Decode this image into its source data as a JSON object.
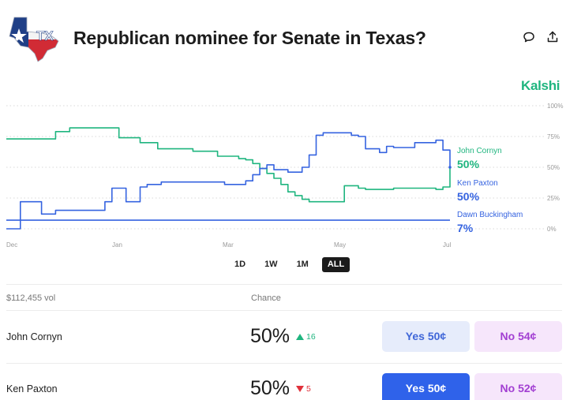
{
  "header": {
    "title": "Republican nominee for Senate in Texas?",
    "logo_text": "TX"
  },
  "brand": "Kalshi",
  "chart_data": {
    "type": "line",
    "x_tick_labels": [
      "Dec",
      "Jan",
      "Mar",
      "May",
      "Jul"
    ],
    "y_tick_labels": [
      "100%",
      "75%",
      "50%",
      "25%",
      "0%"
    ],
    "ylim": [
      0,
      100
    ],
    "grid": true,
    "series": [
      {
        "name": "John Cornyn",
        "label_value": "50%",
        "color": "#1fb57f",
        "values": [
          [
            0,
            73
          ],
          [
            4,
            73
          ],
          [
            8,
            73
          ],
          [
            12,
            73
          ],
          [
            14,
            79
          ],
          [
            18,
            82
          ],
          [
            22,
            82
          ],
          [
            26,
            82
          ],
          [
            30,
            82
          ],
          [
            32,
            74
          ],
          [
            36,
            74
          ],
          [
            38,
            70
          ],
          [
            40,
            70
          ],
          [
            43,
            65
          ],
          [
            46,
            65
          ],
          [
            50,
            65
          ],
          [
            53,
            63
          ],
          [
            56,
            63
          ],
          [
            60,
            59
          ],
          [
            63,
            59
          ],
          [
            66,
            57
          ],
          [
            68,
            56
          ],
          [
            70,
            53
          ],
          [
            72,
            49
          ],
          [
            74,
            45
          ],
          [
            76,
            41
          ],
          [
            78,
            36
          ],
          [
            80,
            30
          ],
          [
            82,
            27
          ],
          [
            84,
            24
          ],
          [
            86,
            22
          ],
          [
            88,
            22
          ],
          [
            90,
            22
          ],
          [
            92,
            22
          ],
          [
            94,
            22
          ],
          [
            96,
            35
          ],
          [
            98,
            35
          ],
          [
            100,
            33
          ],
          [
            102,
            32
          ],
          [
            104,
            32
          ],
          [
            106,
            32
          ],
          [
            108,
            32
          ],
          [
            110,
            33
          ],
          [
            112,
            33
          ],
          [
            114,
            33
          ],
          [
            116,
            33
          ],
          [
            118,
            33
          ],
          [
            120,
            33
          ],
          [
            122,
            32
          ],
          [
            124,
            34
          ],
          [
            126,
            50
          ]
        ]
      },
      {
        "name": "Ken Paxton",
        "label_value": "50%",
        "color": "#3563e0",
        "values": [
          [
            0,
            0
          ],
          [
            2,
            0
          ],
          [
            4,
            22
          ],
          [
            8,
            22
          ],
          [
            10,
            12
          ],
          [
            12,
            12
          ],
          [
            14,
            15
          ],
          [
            18,
            15
          ],
          [
            22,
            15
          ],
          [
            26,
            15
          ],
          [
            28,
            22
          ],
          [
            30,
            33
          ],
          [
            32,
            33
          ],
          [
            34,
            22
          ],
          [
            36,
            22
          ],
          [
            38,
            34
          ],
          [
            40,
            36
          ],
          [
            42,
            36
          ],
          [
            44,
            38
          ],
          [
            46,
            38
          ],
          [
            50,
            38
          ],
          [
            54,
            38
          ],
          [
            58,
            38
          ],
          [
            62,
            36
          ],
          [
            66,
            36
          ],
          [
            68,
            39
          ],
          [
            70,
            44
          ],
          [
            72,
            49
          ],
          [
            74,
            52
          ],
          [
            76,
            48
          ],
          [
            78,
            48
          ],
          [
            80,
            46
          ],
          [
            82,
            46
          ],
          [
            84,
            50
          ],
          [
            86,
            60
          ],
          [
            88,
            76
          ],
          [
            90,
            78
          ],
          [
            92,
            78
          ],
          [
            94,
            78
          ],
          [
            96,
            78
          ],
          [
            98,
            76
          ],
          [
            100,
            75
          ],
          [
            102,
            65
          ],
          [
            104,
            65
          ],
          [
            106,
            62
          ],
          [
            108,
            67
          ],
          [
            110,
            66
          ],
          [
            112,
            66
          ],
          [
            114,
            66
          ],
          [
            116,
            70
          ],
          [
            118,
            70
          ],
          [
            120,
            70
          ],
          [
            122,
            72
          ],
          [
            124,
            64
          ],
          [
            126,
            50
          ]
        ]
      },
      {
        "name": "Dawn Buckingham",
        "label_value": "7%",
        "color": "#3563e0",
        "values": [
          [
            0,
            7
          ],
          [
            126,
            7
          ]
        ]
      }
    ]
  },
  "ranges": [
    "1D",
    "1W",
    "1M",
    "ALL"
  ],
  "active_range": "ALL",
  "table": {
    "volume": "$112,455 vol",
    "chance_header": "Chance",
    "rows": [
      {
        "name": "John Cornyn",
        "chance": "50%",
        "delta": "16",
        "direction": "up",
        "yes": "Yes 50¢",
        "no": "No 54¢",
        "yes_filled": false
      },
      {
        "name": "Ken Paxton",
        "chance": "50%",
        "delta": "5",
        "direction": "down",
        "yes": "Yes 50¢",
        "no": "No 52¢",
        "yes_filled": true
      }
    ]
  }
}
